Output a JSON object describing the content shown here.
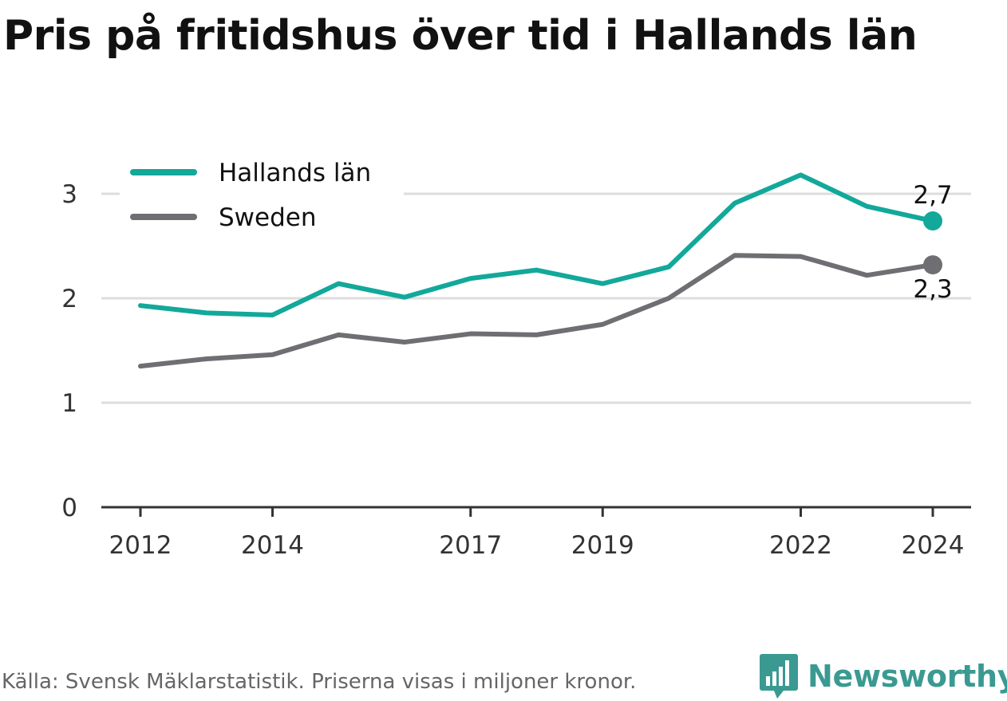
{
  "title": "Pris på fritidshus över tid i Hallands län",
  "source": "Källa: Svensk Mäklarstatistik. Priserna visas i miljoner kronor.",
  "brand": "Newsworthy",
  "colors": {
    "halland": "#12a89a",
    "sweden": "#6f6e73",
    "grid": "#dddddd",
    "axis": "#333333",
    "brand": "#3a9a91"
  },
  "chart_data": {
    "type": "line",
    "x": [
      2012,
      2013,
      2014,
      2015,
      2016,
      2017,
      2018,
      2019,
      2020,
      2021,
      2022,
      2023,
      2024
    ],
    "x_tick_labels": [
      "2012",
      "2014",
      "2017",
      "2019",
      "2022",
      "2024"
    ],
    "x_ticks": [
      2012,
      2014,
      2017,
      2019,
      2022,
      2024
    ],
    "y_ticks": [
      0,
      1,
      2,
      3
    ],
    "y_tick_labels": [
      "0",
      "1",
      "2",
      "3"
    ],
    "ylim": [
      0,
      3.3
    ],
    "xlim": [
      2011.6,
      2024.6
    ],
    "grid": "horizontal",
    "legend_position": "top-left",
    "series": [
      {
        "name": "Hallands län",
        "color_key": "halland",
        "values": [
          1.93,
          1.86,
          1.84,
          2.14,
          2.01,
          2.19,
          2.27,
          2.14,
          2.3,
          2.91,
          3.18,
          2.88,
          2.74
        ],
        "end_label": "2,7",
        "end_label_position": "above"
      },
      {
        "name": "Sweden",
        "color_key": "sweden",
        "values": [
          1.35,
          1.42,
          1.46,
          1.65,
          1.58,
          1.66,
          1.65,
          1.75,
          2.0,
          2.41,
          2.4,
          2.22,
          2.32
        ],
        "end_label": "2,3",
        "end_label_position": "below"
      }
    ]
  }
}
